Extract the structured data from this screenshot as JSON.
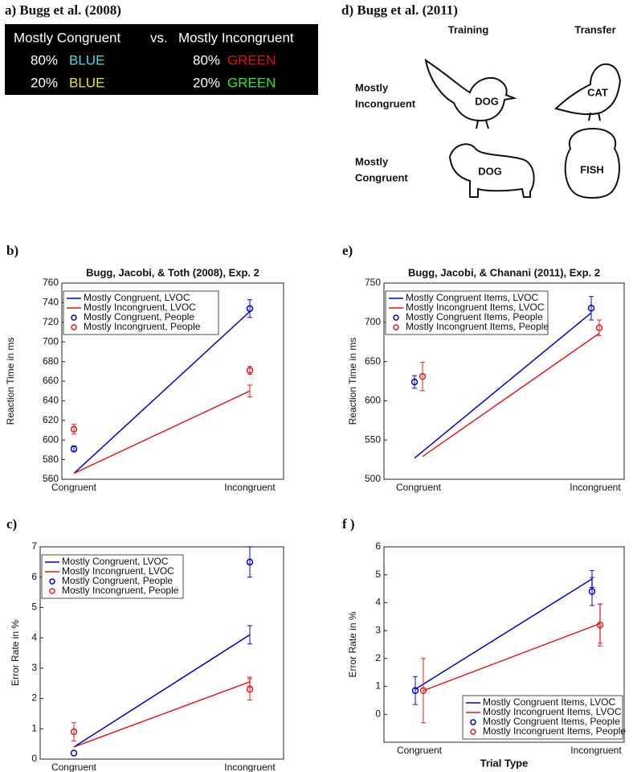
{
  "panel_a": {
    "title": "a) Bugg et al. (2008)",
    "header": [
      "Mostly Congruent",
      "vs.",
      "Mostly Incongruent"
    ],
    "rows": [
      [
        "80%",
        "BLUE",
        "80%",
        "GREEN"
      ],
      [
        "20%",
        "BLUE",
        "20%",
        "GREEN"
      ]
    ]
  },
  "panel_d": {
    "title": "d) Bugg et al. (2011)",
    "columns": [
      "Training",
      "Transfer"
    ],
    "rows": [
      {
        "label": [
          "Mostly",
          "Incongruent"
        ],
        "items": [
          "DOG",
          "CAT"
        ]
      },
      {
        "label": [
          "Mostly",
          "Congruent"
        ],
        "items": [
          "DOG",
          "FISH"
        ]
      }
    ]
  },
  "chart_data": [
    {
      "type": "line",
      "panel_label": "b)",
      "title": "Bugg, Jacobi, & Toth (2008), Exp. 2",
      "ylabel": "Reaction Time in ms",
      "categories": [
        "Congruent",
        "Incongruent"
      ],
      "ylim": [
        560,
        760
      ],
      "yticks": [
        560,
        580,
        600,
        620,
        640,
        660,
        680,
        700,
        720,
        740,
        760
      ],
      "legend": "upper left",
      "series": [
        {
          "name": "Mostly Congruent, LVOC",
          "color": "#0000cc",
          "style": "line",
          "values": [
            566,
            731
          ]
        },
        {
          "name": "Mostly Incongruent, LVOC",
          "color": "#e41a1c",
          "style": "line",
          "values": [
            566,
            650
          ],
          "errors": [
            null,
            6
          ]
        },
        {
          "name": "Mostly Congruent, People",
          "color": "#0000cc",
          "style": "marker",
          "values": [
            591,
            734
          ],
          "errors": [
            3,
            9
          ]
        },
        {
          "name": "Mostly Incongruent, People",
          "color": "#e41a1c",
          "style": "marker",
          "values": [
            611,
            671
          ],
          "errors": [
            5,
            4
          ]
        }
      ]
    },
    {
      "type": "line",
      "panel_label": "c)",
      "ylabel": "Error Rate in %",
      "categories": [
        "Congruent",
        "Incongruent"
      ],
      "ylim": [
        0,
        7
      ],
      "yticks": [
        0,
        1,
        2,
        3,
        4,
        5,
        6,
        7
      ],
      "legend": "upper left",
      "series": [
        {
          "name": "Mostly Congruent, LVOC",
          "color": "#0000cc",
          "style": "line",
          "values": [
            0.4,
            4.1
          ],
          "errors": [
            null,
            0.3
          ]
        },
        {
          "name": "Mostly Incongruent, LVOC",
          "color": "#e41a1c",
          "style": "line",
          "values": [
            0.4,
            2.55
          ],
          "errors": [
            null,
            0.15
          ]
        },
        {
          "name": "Mostly Congruent, People",
          "color": "#0000cc",
          "style": "marker",
          "values": [
            0.2,
            6.5
          ],
          "errors": [
            null,
            0.5
          ]
        },
        {
          "name": "Mostly Incongruent, People",
          "color": "#e41a1c",
          "style": "marker",
          "values": [
            0.9,
            2.3
          ],
          "errors": [
            0.3,
            0.35
          ]
        }
      ]
    },
    {
      "type": "line",
      "panel_label": "e)",
      "title": "Bugg, Jacobi, & Chanani (2011), Exp. 2",
      "ylabel": "Reaction Time in ms",
      "categories": [
        "Congruent",
        "Incongruent"
      ],
      "ylim": [
        500,
        750
      ],
      "yticks": [
        500,
        550,
        600,
        650,
        700,
        750
      ],
      "legend": "upper left",
      "dodge": true,
      "series": [
        {
          "name": "Mostly Congruent Items, LVOC",
          "color": "#0000cc",
          "style": "line",
          "values": [
            527,
            712
          ]
        },
        {
          "name": "Mostly Incongruent Items, LVOC",
          "color": "#e41a1c",
          "style": "line",
          "values": [
            529,
            686
          ]
        },
        {
          "name": "Mostly Congruent Items, People",
          "color": "#0000cc",
          "style": "marker",
          "values": [
            624,
            718
          ],
          "errors": [
            8,
            15
          ]
        },
        {
          "name": "Mostly Incongruent Items, People",
          "color": "#e41a1c",
          "style": "marker",
          "values": [
            631,
            693
          ],
          "errors": [
            18,
            10
          ]
        }
      ]
    },
    {
      "type": "line",
      "panel_label": "f )",
      "ylabel": "Error Rate in %",
      "xlabel": "Trial Type",
      "categories": [
        "Congruent",
        "Incongruent"
      ],
      "ylim": [
        -1,
        6
      ],
      "yticks": [
        0,
        1,
        2,
        3,
        4,
        5,
        6
      ],
      "legend": "lower right",
      "dodge": true,
      "series": [
        {
          "name": "Mostly Congruent Items, LVOC",
          "color": "#0000cc",
          "style": "line",
          "values": [
            0.9,
            4.85
          ],
          "errors": [
            null,
            0.3
          ]
        },
        {
          "name": "Mostly Incongruent Items, LVOC",
          "color": "#e41a1c",
          "style": "line",
          "values": [
            0.85,
            3.25
          ],
          "errors": [
            null,
            0.7
          ]
        },
        {
          "name": "Mostly Congruent Items, People",
          "color": "#0000cc",
          "style": "marker",
          "values": [
            0.85,
            4.4
          ],
          "errors": [
            0.5,
            0.5
          ]
        },
        {
          "name": "Mostly Incongruent Items, People",
          "color": "#e41a1c",
          "style": "marker",
          "values": [
            0.85,
            3.2
          ],
          "errors": [
            1.15,
            0.75
          ]
        }
      ]
    }
  ]
}
